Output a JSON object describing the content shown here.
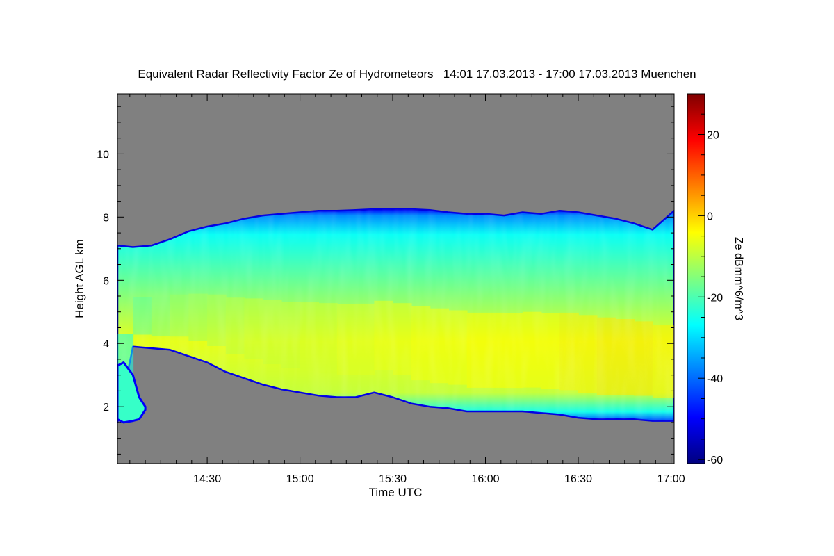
{
  "chart_data": {
    "type": "heatmap",
    "title": "Equivalent Radar Reflectivity Factor Ze of Hydrometeors   14:01 17.03.2013 - 17:00 17.03.2013 Muenchen",
    "xlabel": "Time UTC",
    "ylabel": "Height AGL km",
    "colorbar_label": "Ze dBmm^6/m^3",
    "x_unit": "minutes since 00:00 UTC",
    "xlim": [
      841,
      1021
    ],
    "ylim": [
      0.2,
      11.9
    ],
    "clim": [
      -61,
      30
    ],
    "x_ticks": [
      870,
      900,
      930,
      960,
      990,
      1020
    ],
    "x_tick_labels": [
      "14:30",
      "15:00",
      "15:30",
      "16:00",
      "16:30",
      "17:00"
    ],
    "y_ticks": [
      2,
      4,
      6,
      8,
      10
    ],
    "y_tick_labels": [
      "2",
      "4",
      "6",
      "8",
      "10"
    ],
    "colorbar_ticks": [
      -60,
      -40,
      -20,
      0,
      20
    ],
    "colorbar_tick_labels": [
      "-60",
      "-40",
      "-20",
      "0",
      "20"
    ],
    "no_data_color": "#808080",
    "colormap": [
      "#00007f",
      "#0000ff",
      "#007fff",
      "#00ffff",
      "#7fff7f",
      "#ffff00",
      "#ff7f00",
      "#ff0000",
      "#7f0000"
    ],
    "echo_layer": {
      "time": [
        841,
        846,
        852,
        858,
        864,
        870,
        876,
        882,
        888,
        894,
        900,
        906,
        912,
        918,
        924,
        930,
        936,
        942,
        948,
        954,
        960,
        966,
        972,
        978,
        984,
        990,
        996,
        1002,
        1008,
        1014,
        1021
      ],
      "top_km": [
        7.1,
        7.05,
        7.1,
        7.3,
        7.55,
        7.7,
        7.8,
        7.95,
        8.05,
        8.1,
        8.15,
        8.2,
        8.2,
        8.22,
        8.25,
        8.25,
        8.25,
        8.22,
        8.15,
        8.1,
        8.1,
        8.05,
        8.15,
        8.1,
        8.2,
        8.15,
        8.05,
        7.95,
        7.8,
        7.6,
        8.2
      ],
      "base_km": [
        1.5,
        3.9,
        3.85,
        3.8,
        3.6,
        3.4,
        3.1,
        2.9,
        2.7,
        2.55,
        2.45,
        2.35,
        2.3,
        2.3,
        2.45,
        2.3,
        2.1,
        2.0,
        1.95,
        1.85,
        1.85,
        1.85,
        1.85,
        1.8,
        1.75,
        1.65,
        1.6,
        1.6,
        1.6,
        1.55,
        1.55
      ],
      "core_ze_dbz": [
        -25,
        -18,
        -15,
        -13,
        -12,
        -11,
        -10,
        -9,
        -9,
        -9,
        -8,
        -8,
        -7,
        -7,
        -6,
        -6,
        -5,
        -5,
        -5,
        -4,
        -4,
        -4,
        -4,
        -4,
        -3,
        -3,
        -2,
        -2,
        -2,
        -3,
        -4
      ]
    },
    "low_echo": {
      "time": [
        841,
        843,
        846,
        848,
        850
      ],
      "top_km": [
        3.3,
        3.4,
        3.0,
        2.3,
        2.0
      ],
      "base_km": [
        1.6,
        1.5,
        1.55,
        1.6,
        1.9
      ]
    }
  }
}
